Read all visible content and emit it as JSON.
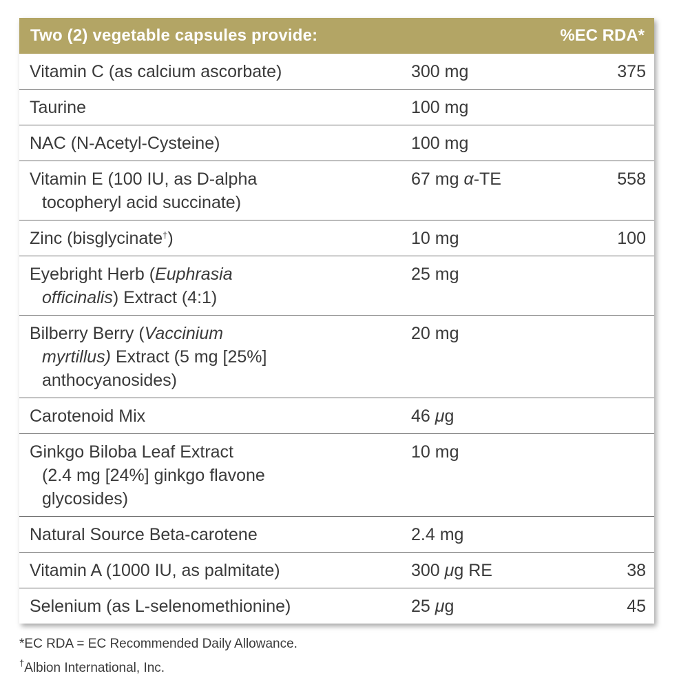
{
  "table": {
    "header": {
      "left": "Two (2) vegetable capsules provide:",
      "right": "%EC RDA*"
    },
    "rows": [
      {
        "name_l1": "Vitamin C (as calcium ascorbate)",
        "amount": "300 mg",
        "rda": "375"
      },
      {
        "name_l1": "Taurine",
        "amount": "100 mg",
        "rda": ""
      },
      {
        "name_l1": "NAC (N-Acetyl-Cysteine)",
        "amount": "100 mg",
        "rda": ""
      },
      {
        "name_l1": "Vitamin E (100 IU, as D-alpha",
        "name_l2": "tocopheryl acid succinate)",
        "amount_pre": "67 mg ",
        "amount_ital": "α",
        "amount_post": "-TE",
        "rda": "558"
      },
      {
        "name_l1": "Zinc (bisglycinate",
        "name_sup": "†",
        "name_l1_end": ")",
        "amount": "10 mg",
        "rda": "100"
      },
      {
        "name_pre": "Eyebright Herb (",
        "name_ital": "Euphrasia",
        "name_l2_ital": "officinalis",
        "name_l2_rest": ") Extract (4:1)",
        "amount": "25 mg",
        "rda": ""
      },
      {
        "name_pre": "Bilberry Berry (",
        "name_ital": "Vaccinium",
        "name_l2_ital": "myrtillus)",
        "name_l2_rest": " Extract (5 mg [25%]",
        "name_l3": "anthocyanosides)",
        "amount": "20 mg",
        "rda": ""
      },
      {
        "name_l1": "Carotenoid Mix",
        "amount_pre": "46 ",
        "amount_ital": "μ",
        "amount_post": "g",
        "rda": ""
      },
      {
        "name_l1": "Ginkgo Biloba Leaf Extract",
        "name_l2": "(2.4 mg [24%] ginkgo flavone",
        "name_l3": "glycosides)",
        "amount": "10 mg",
        "rda": ""
      },
      {
        "name_l1": "Natural Source Beta-carotene",
        "amount": "2.4 mg",
        "rda": ""
      },
      {
        "name_l1": "Vitamin A (1000 IU, as palmitate)",
        "amount_pre": "300 ",
        "amount_ital": "μ",
        "amount_post": "g RE",
        "rda": "38"
      },
      {
        "name_l1": "Selenium (as L-selenomethionine)",
        "amount_pre": "25 ",
        "amount_ital": "μ",
        "amount_post": "g",
        "rda": "45"
      }
    ]
  },
  "footnotes": {
    "note1": "*EC RDA = EC Recommended Daily Allowance.",
    "note2_mark": "†",
    "note2": "Albion International, Inc."
  },
  "colors": {
    "header_bg": "#b3a565",
    "text": "#3a3a3a",
    "rule": "#6e6e6e"
  }
}
